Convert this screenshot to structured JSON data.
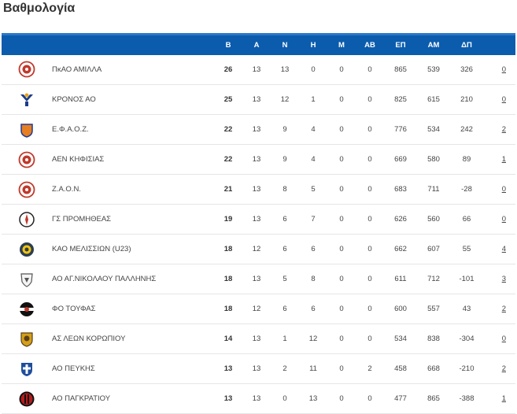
{
  "page": {
    "title": "Βαθμολογία"
  },
  "table": {
    "headers": [
      "",
      "",
      "Β",
      "Α",
      "Ν",
      "Η",
      "Μ",
      "ΑΒ",
      "ΕΠ",
      "ΑΜ",
      "ΔΠ",
      ""
    ],
    "rows": [
      {
        "logo": {
          "icon": "amilla-logo",
          "primary": "#c0392b",
          "secondary": "#ffffff"
        },
        "team": "ΠκΑΟ ΑΜΙΛΛΑ",
        "pts": "26",
        "played": "13",
        "wins": "13",
        "losses": "0",
        "m": "0",
        "ab": "0",
        "ep": "865",
        "am": "539",
        "dp": "326",
        "extra": "0"
      },
      {
        "logo": {
          "icon": "kronos-logo",
          "primary": "#1a3c8c",
          "secondary": "#e8a317"
        },
        "team": "ΚΡΟΝΟΣ ΑΟ",
        "pts": "25",
        "played": "13",
        "wins": "12",
        "losses": "1",
        "m": "0",
        "ab": "0",
        "ep": "825",
        "am": "615",
        "dp": "210",
        "extra": "0"
      },
      {
        "logo": {
          "icon": "efaoz-logo",
          "primary": "#e67e22",
          "secondary": "#1f3a93"
        },
        "team": "Ε.Φ.Α.Ο.Ζ.",
        "pts": "22",
        "played": "13",
        "wins": "9",
        "losses": "4",
        "m": "0",
        "ab": "0",
        "ep": "776",
        "am": "534",
        "dp": "242",
        "extra": "2"
      },
      {
        "logo": {
          "icon": "aen-kifisias-logo",
          "primary": "#c0392b",
          "secondary": "#ffffff"
        },
        "team": "ΑΕΝ ΚΗΦΙΣΙΑΣ",
        "pts": "22",
        "played": "13",
        "wins": "9",
        "losses": "4",
        "m": "0",
        "ab": "0",
        "ep": "669",
        "am": "580",
        "dp": "89",
        "extra": "1"
      },
      {
        "logo": {
          "icon": "zaon-logo",
          "primary": "#c0392b",
          "secondary": "#ffffff"
        },
        "team": "Ζ.Α.Ο.Ν.",
        "pts": "21",
        "played": "13",
        "wins": "8",
        "losses": "5",
        "m": "0",
        "ab": "0",
        "ep": "683",
        "am": "711",
        "dp": "-28",
        "extra": "0"
      },
      {
        "logo": {
          "icon": "promitheas-logo",
          "primary": "#222222",
          "secondary": "#c0392b"
        },
        "team": "ΓΣ ΠΡΟΜΗΘΕΑΣ",
        "pts": "19",
        "played": "13",
        "wins": "6",
        "losses": "7",
        "m": "0",
        "ab": "0",
        "ep": "626",
        "am": "560",
        "dp": "66",
        "extra": "0"
      },
      {
        "logo": {
          "icon": "melission-logo",
          "primary": "#2c3e50",
          "secondary": "#f1c40f"
        },
        "team": "ΚΑΟ ΜΕΛΙΣΣΙΩΝ (U23)",
        "pts": "18",
        "played": "12",
        "wins": "6",
        "losses": "6",
        "m": "0",
        "ab": "0",
        "ep": "662",
        "am": "607",
        "dp": "55",
        "extra": "4"
      },
      {
        "logo": {
          "icon": "ag-nikolaou-logo",
          "primary": "#555555",
          "secondary": "#dddddd"
        },
        "team": "ΑΟ ΑΓ.ΝΙΚΟΛΑΟΥ ΠΑΛΛΗΝΗΣ",
        "pts": "18",
        "played": "13",
        "wins": "5",
        "losses": "8",
        "m": "0",
        "ab": "0",
        "ep": "611",
        "am": "712",
        "dp": "-101",
        "extra": "3"
      },
      {
        "logo": {
          "icon": "toufas-logo",
          "primary": "#111111",
          "secondary": "#c0392b"
        },
        "team": "ΦΟ ΤΟΥΦΑΣ",
        "pts": "18",
        "played": "12",
        "wins": "6",
        "losses": "6",
        "m": "0",
        "ab": "0",
        "ep": "600",
        "am": "557",
        "dp": "43",
        "extra": "2"
      },
      {
        "logo": {
          "icon": "leon-koropiou-logo",
          "primary": "#d4a017",
          "secondary": "#5a3e1b"
        },
        "team": "ΑΣ ΛΕΩΝ ΚΟΡΩΠΙΟΥ",
        "pts": "14",
        "played": "13",
        "wins": "1",
        "losses": "12",
        "m": "0",
        "ab": "0",
        "ep": "534",
        "am": "838",
        "dp": "-304",
        "extra": "0"
      },
      {
        "logo": {
          "icon": "peukis-logo",
          "primary": "#1f4e9c",
          "secondary": "#ffffff"
        },
        "team": "ΑΟ ΠΕΥΚΗΣ",
        "pts": "13",
        "played": "13",
        "wins": "2",
        "losses": "11",
        "m": "0",
        "ab": "2",
        "ep": "458",
        "am": "668",
        "dp": "-210",
        "extra": "2"
      },
      {
        "logo": {
          "icon": "pagkratiou-logo",
          "primary": "#b71c1c",
          "secondary": "#111111"
        },
        "team": "ΑΟ ΠΑΓΚΡΑΤΙΟΥ",
        "pts": "13",
        "played": "13",
        "wins": "0",
        "losses": "13",
        "m": "0",
        "ab": "0",
        "ep": "477",
        "am": "865",
        "dp": "-388",
        "extra": "1"
      }
    ]
  }
}
